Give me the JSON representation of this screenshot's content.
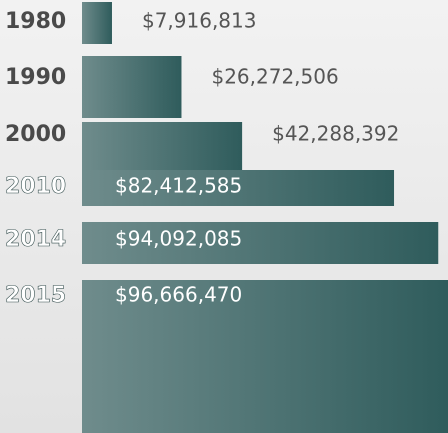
{
  "chart_data": {
    "type": "bar",
    "orientation": "horizontal",
    "categories": [
      "1980",
      "1990",
      "2000",
      "2010",
      "2014",
      "2015"
    ],
    "values": [
      7916813,
      26272506,
      42288392,
      82412585,
      94092085,
      96666470
    ],
    "value_labels": [
      "$7,916,813",
      "$26,272,506",
      "$42,288,392",
      "$82,412,585",
      "$94,092,085",
      "$96,666,470"
    ],
    "color": "#2f5c5c"
  }
}
